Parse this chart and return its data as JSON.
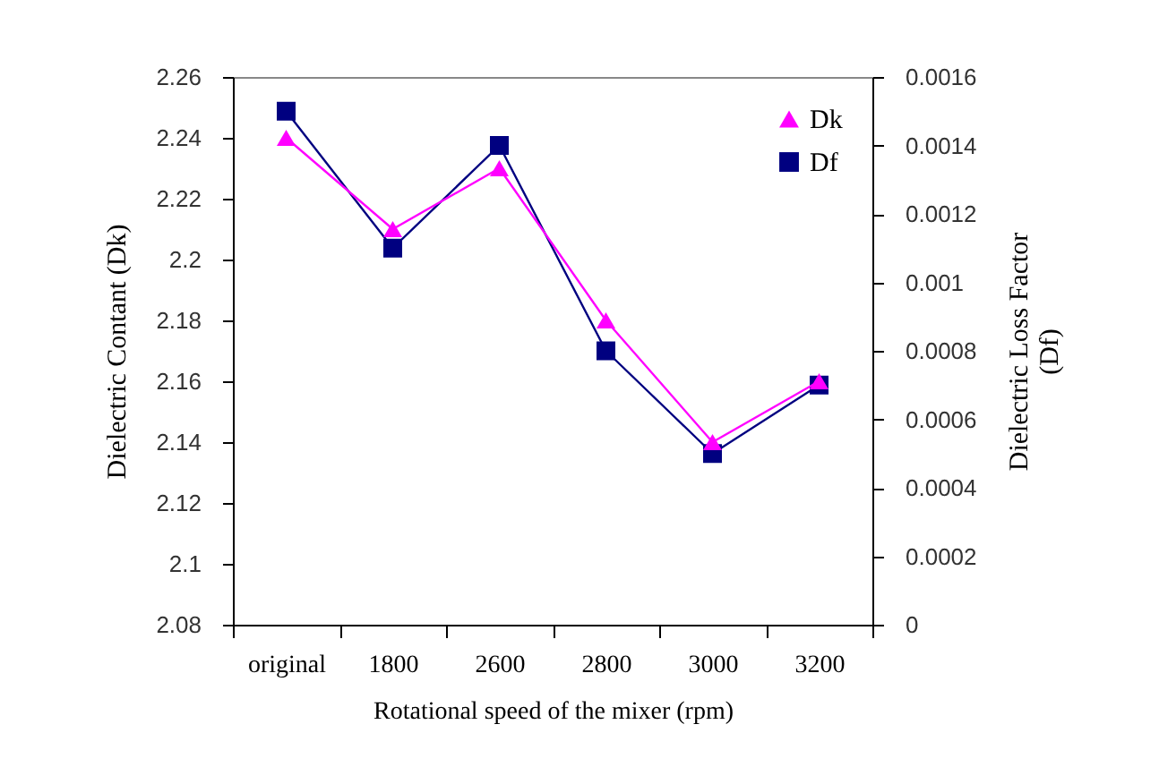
{
  "chart_data": {
    "type": "line",
    "xlabel": "Rotational speed of the mixer (rpm)",
    "ylabel": "Dielectric Contant (Dk)",
    "y2label": "Dielectric Loss Factor (Df)",
    "categories": [
      "original",
      "1800",
      "2600",
      "2800",
      "3000",
      "3200"
    ],
    "series": [
      {
        "name": "Dk",
        "color": "#ff00ff",
        "marker": "triangle",
        "values": [
          2.24,
          2.21,
          2.23,
          2.18,
          2.14,
          2.16
        ]
      },
      {
        "name": "Df",
        "color": "#000080",
        "marker": "square",
        "axis": "y2",
        "values": [
          0.0015,
          0.0011,
          0.0014,
          0.0008,
          0.0005,
          0.0007
        ]
      }
    ],
    "ylim": [
      2.08,
      2.26
    ],
    "yticks": [
      2.08,
      2.1,
      2.12,
      2.14,
      2.16,
      2.18,
      2.2,
      2.22,
      2.24,
      2.26
    ],
    "y2lim": [
      0,
      0.0016
    ],
    "y2ticks": [
      0,
      0.0002,
      0.0004,
      0.0006,
      0.0008,
      0.001,
      0.0012,
      0.0014,
      0.0016
    ],
    "grid": false,
    "legend": "top right"
  }
}
